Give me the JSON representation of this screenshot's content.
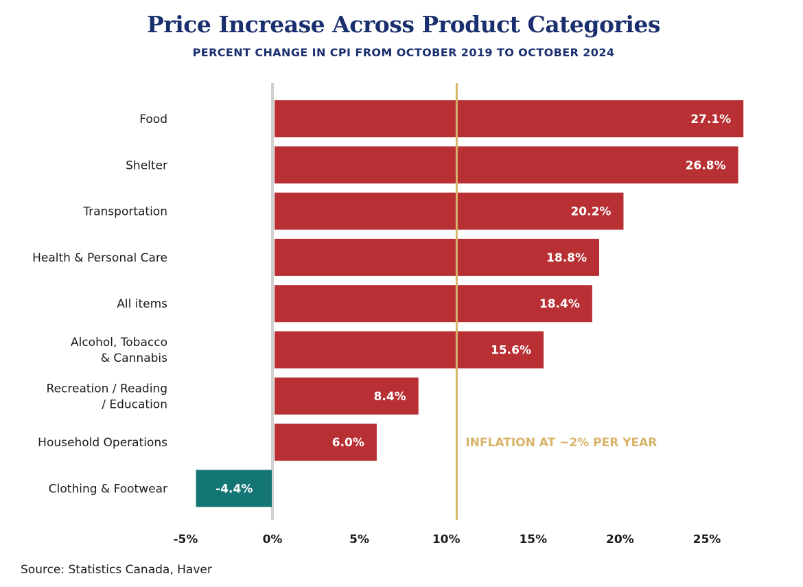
{
  "title": "Price Increase Across Product Categories",
  "subtitle": "PERCENT CHANGE IN CPI FROM OCTOBER 2019 TO OCTOBER 2024",
  "source": "Source: Statistics Canada, Haver",
  "colors": {
    "positive_bar": "#b83033",
    "negative_bar": "#137675",
    "reference_line": "#d8b46a",
    "title": "#1a2f6e",
    "zero_line": "#d0d0d0"
  },
  "chart_data": {
    "type": "bar",
    "orientation": "horizontal",
    "categories": [
      "Food",
      "Shelter",
      "Transportation",
      "Health & Personal Care",
      "All items",
      "Alcohol, Tobacco & Cannabis",
      "Recreation / Reading / Education",
      "Household Operations",
      "Clothing & Footwear"
    ],
    "category_lines": [
      [
        "Food"
      ],
      [
        "Shelter"
      ],
      [
        "Transportation"
      ],
      [
        "Health & Personal Care"
      ],
      [
        "All items"
      ],
      [
        "Alcohol, Tobacco",
        "& Cannabis"
      ],
      [
        "Recreation / Reading",
        "/ Education"
      ],
      [
        "Household Operations"
      ],
      [
        "Clothing & Footwear"
      ]
    ],
    "values": [
      27.1,
      26.8,
      20.2,
      18.8,
      18.4,
      15.6,
      8.4,
      6.0,
      -4.4
    ],
    "value_labels": [
      "27.1%",
      "26.8%",
      "20.2%",
      "18.8%",
      "18.4%",
      "15.6%",
      "8.4%",
      "6.0%",
      "-4.4%"
    ],
    "xlim": [
      -5,
      27.5
    ],
    "x_ticks": [
      -5,
      0,
      5,
      10,
      15,
      20,
      25
    ],
    "x_tick_labels": [
      "-5%",
      "0%",
      "5%",
      "10%",
      "15%",
      "20%",
      "25%"
    ],
    "reference_line": {
      "value": 10.6,
      "label": "INFLATION AT ~2% PER YEAR"
    },
    "grid": false,
    "legend": "none"
  }
}
